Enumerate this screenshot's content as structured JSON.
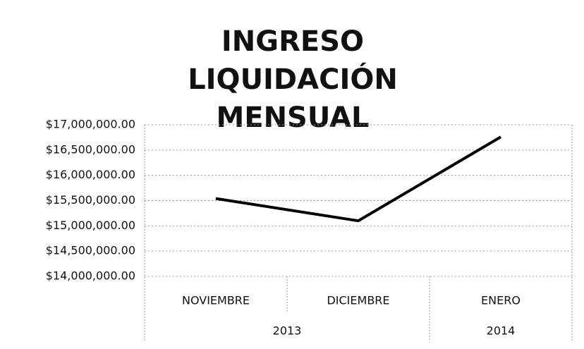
{
  "chart_data": {
    "type": "line",
    "title": "INGRESO LIQUIDACIÓN MENSUAL",
    "categories": [
      "NOVIEMBRE",
      "DICIEMBRE",
      "ENERO"
    ],
    "groups": [
      {
        "label": "2013",
        "size": 2
      },
      {
        "label": "2014",
        "size": 1
      }
    ],
    "values": [
      15540000,
      15100000,
      16760000
    ],
    "color": "#000000",
    "ylim": [
      14000000,
      17000000
    ],
    "yticks": [
      {
        "value": 14000000,
        "label": "$14,000,000.00"
      },
      {
        "value": 14500000,
        "label": "$14,500,000.00"
      },
      {
        "value": 15000000,
        "label": "$15,000,000.00"
      },
      {
        "value": 15500000,
        "label": "$15,500,000.00"
      },
      {
        "value": 16000000,
        "label": "$16,000,000.00"
      },
      {
        "value": 16500000,
        "label": "$16,500,000.00"
      },
      {
        "value": 17000000,
        "label": "$17,000,000.00"
      }
    ],
    "grid": true
  }
}
